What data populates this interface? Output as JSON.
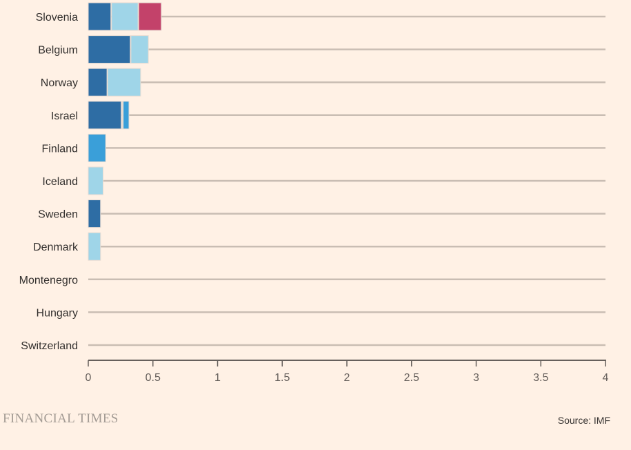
{
  "chart_data": {
    "type": "bar",
    "orientation": "horizontal",
    "stacked": true,
    "categories": [
      "Slovenia",
      "Belgium",
      "Norway",
      "Israel",
      "Finland",
      "Iceland",
      "Sweden",
      "Denmark",
      "Montenegro",
      "Hungary",
      "Switzerland"
    ],
    "series": [
      {
        "color": "#2e6da4",
        "values": [
          0.18,
          0.33,
          0.15,
          0.26,
          0,
          0,
          0.1,
          0,
          0,
          0,
          0
        ]
      },
      {
        "color": "#9fd5e8",
        "values": [
          0.21,
          0.14,
          0.26,
          0.01,
          0,
          0.12,
          0,
          0.1,
          0,
          0,
          0
        ]
      },
      {
        "color": "#3a9fd9",
        "values": [
          0,
          0,
          0,
          0.05,
          0.14,
          0,
          0,
          0,
          0,
          0,
          0
        ]
      },
      {
        "color": "#c3426a",
        "values": [
          0.18,
          0,
          0,
          0,
          0,
          0,
          0,
          0,
          0,
          0,
          0
        ]
      }
    ],
    "xlim": [
      0,
      4
    ],
    "xticks": [
      "0",
      "0.5",
      "1",
      "1.5",
      "2",
      "2.5",
      "3",
      "3.5",
      "4"
    ],
    "grid": true
  },
  "footer": {
    "brand": "FINANCIAL TIMES",
    "source": "Source: IMF"
  }
}
